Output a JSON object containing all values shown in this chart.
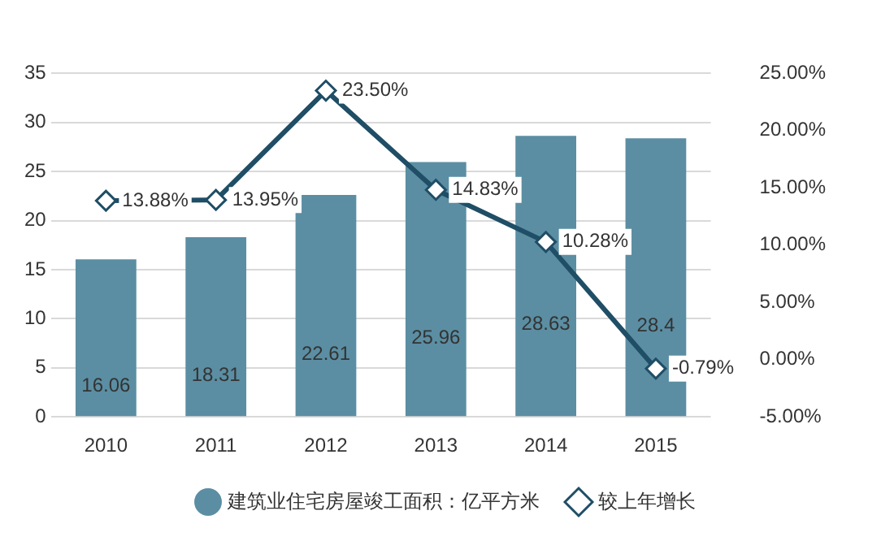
{
  "chart_data": {
    "type": "bar",
    "categories": [
      "2010",
      "2011",
      "2012",
      "2013",
      "2014",
      "2015"
    ],
    "series": [
      {
        "name": "建筑业住宅房屋竣工面积：亿平方米",
        "color": "#5b8ea3",
        "values": [
          16.06,
          18.31,
          22.61,
          25.96,
          28.63,
          28.4
        ],
        "value_labels": [
          "16.06",
          "18.31",
          "22.61",
          "25.96",
          "28.63",
          "28.4"
        ]
      },
      {
        "name": "较上年增长",
        "type": "line",
        "axis": "y2",
        "color": "#1f4e66",
        "marker": "diamond",
        "values": [
          13.88,
          13.95,
          23.5,
          14.83,
          10.28,
          -0.79
        ],
        "value_labels": [
          "13.88%",
          "13.95%",
          "23.50%",
          "14.83%",
          "10.28%",
          "-0.79%"
        ]
      }
    ],
    "ylim": [
      0,
      35
    ],
    "yticks": [
      0,
      5,
      10,
      15,
      20,
      25,
      30,
      35
    ],
    "y2lim": [
      -5,
      25
    ],
    "y2ticks": [
      {
        "value": -5,
        "label": "-5.00%"
      },
      {
        "value": 0,
        "label": "0.00%"
      },
      {
        "value": 5,
        "label": "5.00%"
      },
      {
        "value": 10,
        "label": "10.00%"
      },
      {
        "value": 15,
        "label": "15.00%"
      },
      {
        "value": 20,
        "label": "20.00%"
      },
      {
        "value": 25,
        "label": "25.00%"
      }
    ],
    "grid": "y",
    "legend": "bottom"
  }
}
